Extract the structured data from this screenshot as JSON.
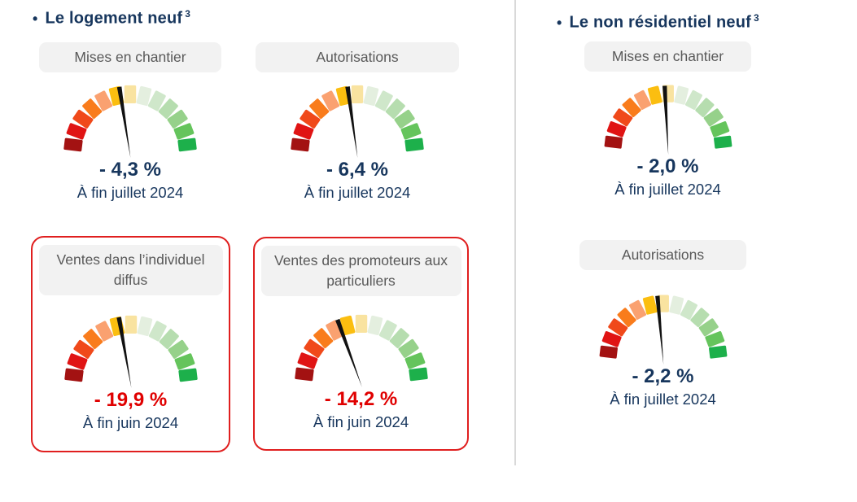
{
  "colors": {
    "navy": "#17365D",
    "alert_red": "#E00000",
    "card_border": "#E01F1F",
    "divider": "#D9D9D9",
    "label_bg": "#F2F2F2",
    "label_text": "#595959",
    "needle": "#111111"
  },
  "gauge_palette": [
    "#A31212",
    "#E01414",
    "#F0491A",
    "#F97C1C",
    "#FAA170",
    "#FBBE10",
    "#F9E3A0",
    "#E4EFDF",
    "#CFE7CA",
    "#B6DDAF",
    "#96D18A",
    "#65C45C",
    "#1DB04B"
  ],
  "sections": [
    {
      "title": "Le logement neuf",
      "title_superscript": "3",
      "gauges": [
        {
          "id": "logement-mises-en-chantier",
          "label": "Mises en chantier",
          "value": "- 4,3 %",
          "caption": "À fin juillet 2024",
          "value_color": "#17365D",
          "needle_deg": -9,
          "highlighted": false
        },
        {
          "id": "logement-autorisations",
          "label": "Autorisations",
          "value": "- 6,4 %",
          "caption": "À fin juillet 2024",
          "value_color": "#17365D",
          "needle_deg": -8,
          "highlighted": false
        },
        {
          "id": "ventes-individuel-diffus",
          "label": "Ventes dans l’individuel diffus",
          "value": "- 19,9 %",
          "caption": "À fin juin 2024",
          "value_color": "#E00000",
          "needle_deg": -10,
          "highlighted": true
        },
        {
          "id": "ventes-promoteurs-particuliers",
          "label": "Ventes des promoteurs aux particuliers",
          "value": "- 14,2 %",
          "caption": "À fin juin 2024",
          "value_color": "#E00000",
          "needle_deg": -20,
          "highlighted": true
        }
      ]
    },
    {
      "title": "Le non résidentiel neuf",
      "title_superscript": "3",
      "gauges": [
        {
          "id": "nonres-mises-en-chantier",
          "label": "Mises en chantier",
          "value": "- 2,0 %",
          "caption": "À fin juillet 2024",
          "value_color": "#17365D",
          "needle_deg": -3,
          "highlighted": false
        },
        {
          "id": "nonres-autorisations",
          "label": "Autorisations",
          "value": "- 2,2 %",
          "caption": "À fin juillet 2024",
          "value_color": "#17365D",
          "needle_deg": -5,
          "highlighted": false
        }
      ]
    }
  ],
  "chart_data": {
    "type": "gauge",
    "scale_note": "13-segment semicircular scale from dark red (worst) through yellow to green (best), black needle",
    "gauges": [
      {
        "section": "Le logement neuf",
        "label": "Mises en chantier",
        "value_pct": -4.3,
        "period": "À fin juillet 2024",
        "highlighted": false
      },
      {
        "section": "Le logement neuf",
        "label": "Autorisations",
        "value_pct": -6.4,
        "period": "À fin juillet 2024",
        "highlighted": false
      },
      {
        "section": "Le logement neuf",
        "label": "Ventes dans l’individuel diffus",
        "value_pct": -19.9,
        "period": "À fin juin 2024",
        "highlighted": true
      },
      {
        "section": "Le logement neuf",
        "label": "Ventes des promoteurs aux particuliers",
        "value_pct": -14.2,
        "period": "À fin juin 2024",
        "highlighted": true
      },
      {
        "section": "Le non résidentiel neuf",
        "label": "Mises en chantier",
        "value_pct": -2.0,
        "period": "À fin juillet 2024",
        "highlighted": false
      },
      {
        "section": "Le non résidentiel neuf",
        "label": "Autorisations",
        "value_pct": -2.2,
        "period": "À fin juillet 2024",
        "highlighted": false
      }
    ]
  }
}
